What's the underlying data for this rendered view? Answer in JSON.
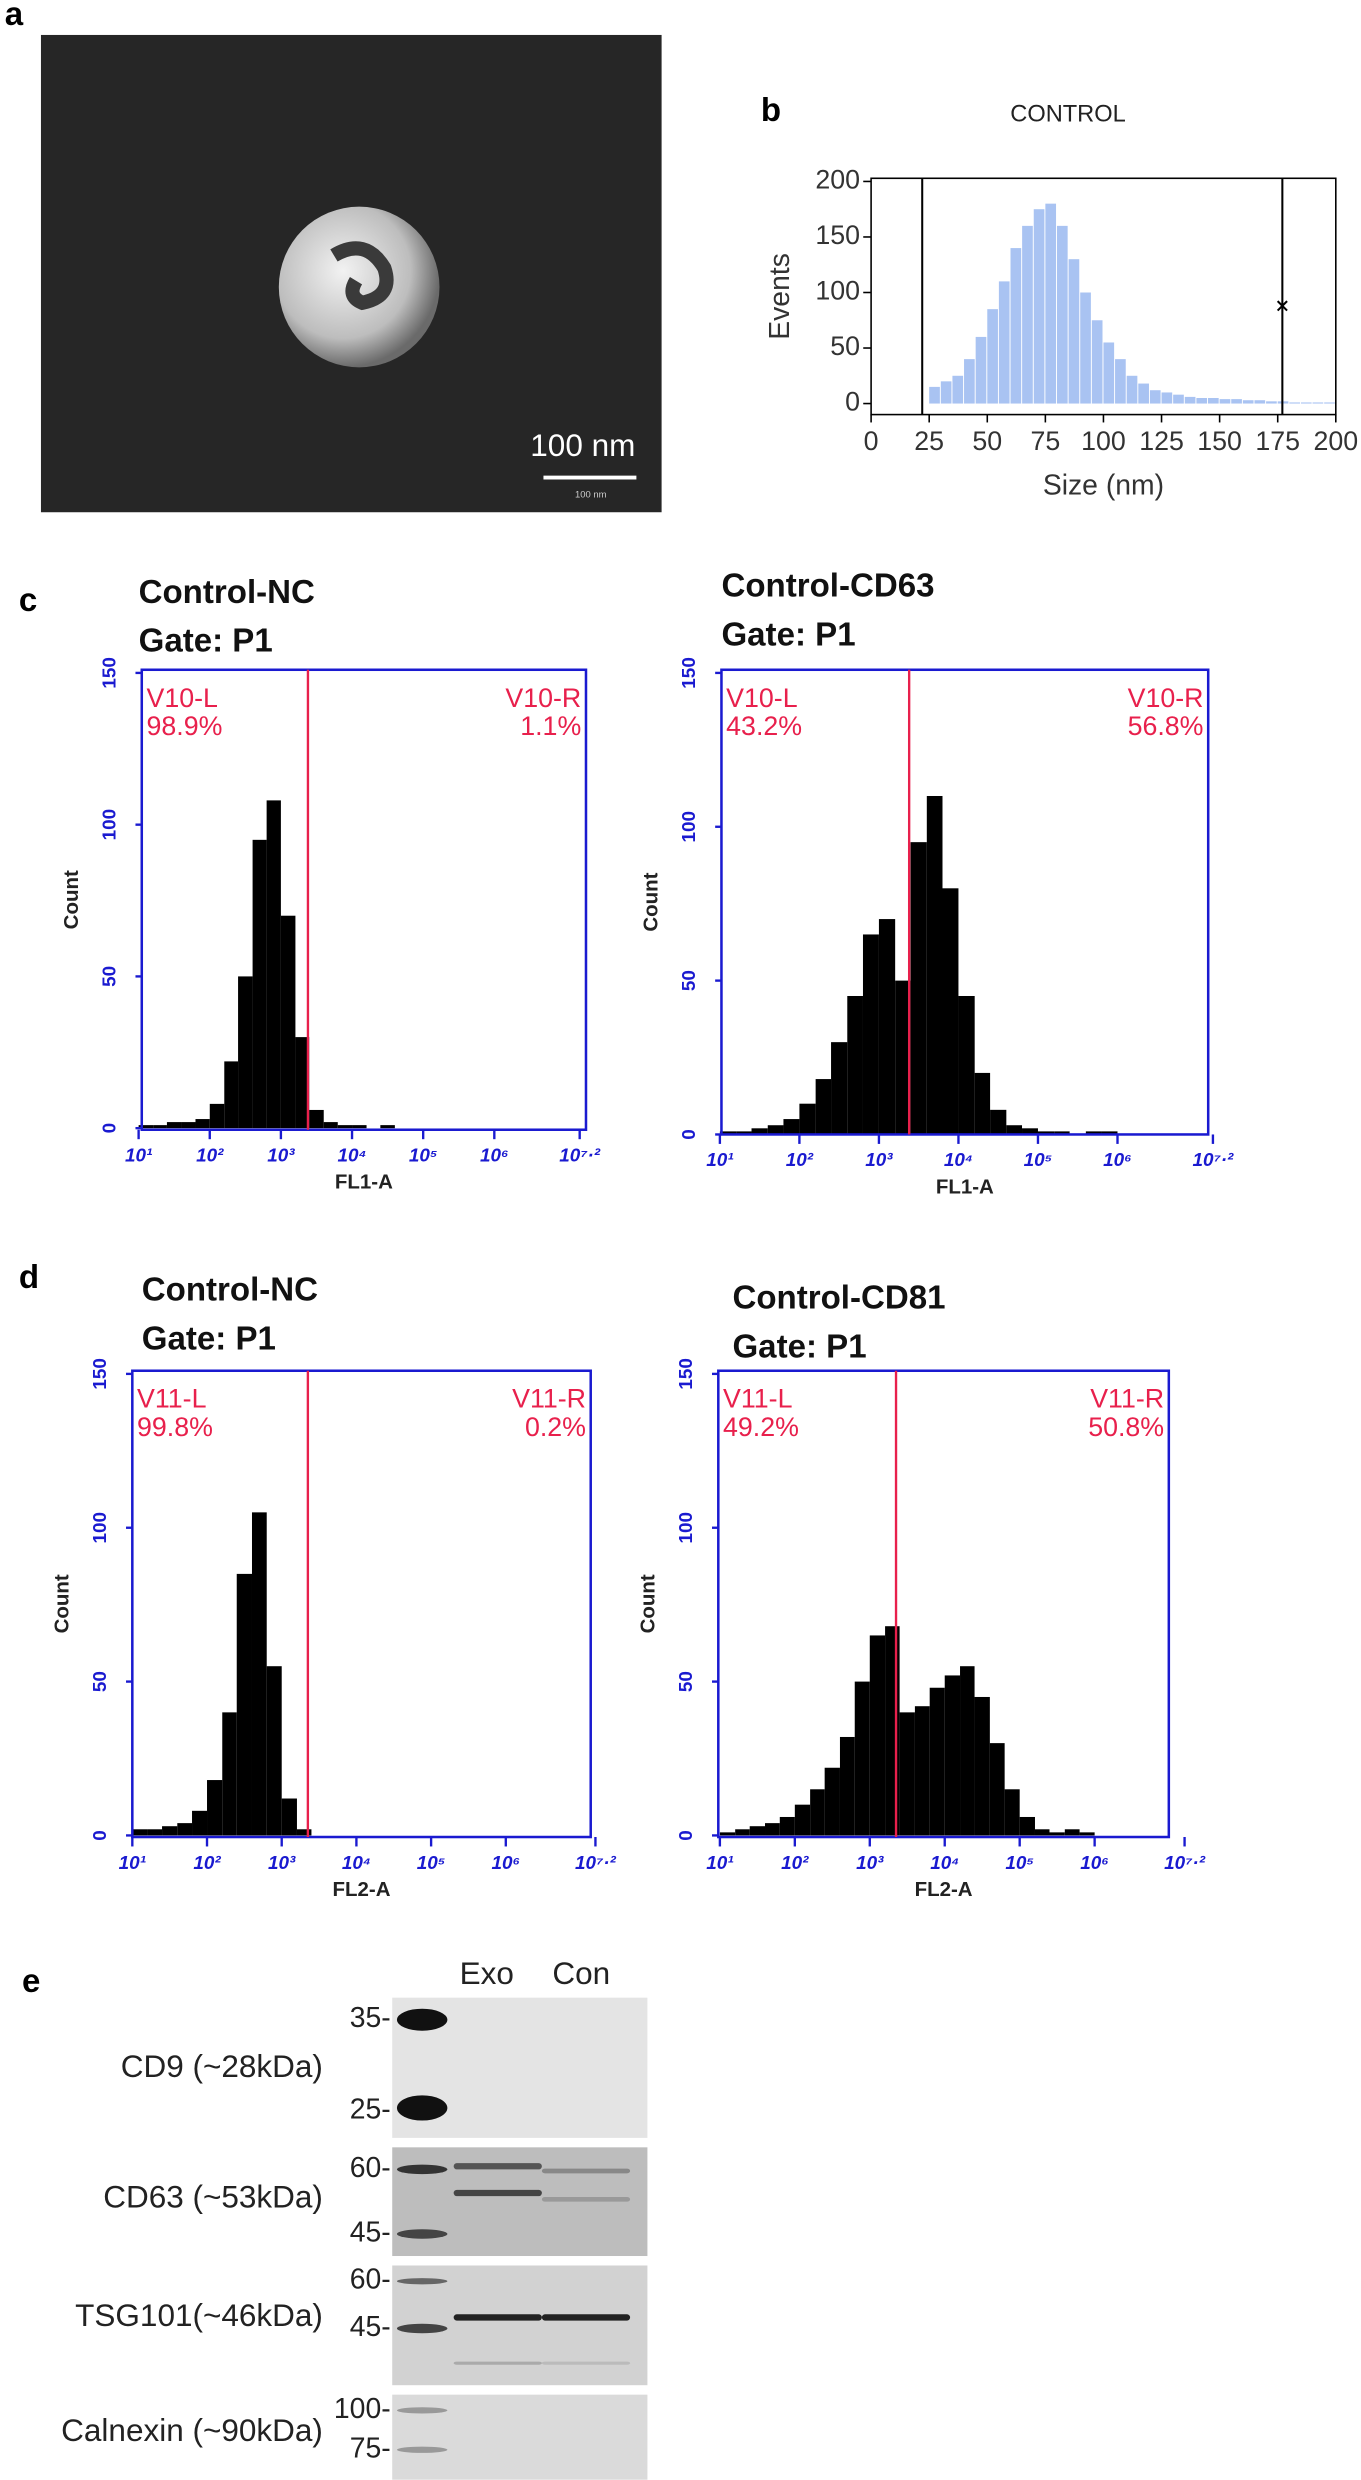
{
  "panel_labels": [
    "a",
    "b",
    "c",
    "d",
    "e"
  ],
  "tem_image": {
    "scale_bar": "100 nm",
    "scale_bar_small": "100 nm"
  },
  "chart_data": [
    {
      "type": "histogram",
      "title": "CONTROL",
      "xlabel": "Size (nm)",
      "ylabel": "Events",
      "xscale": "linear",
      "color": "#a9c3f2",
      "axis_color": "#000000",
      "bins": [
        25,
        30,
        35,
        40,
        45,
        50,
        55,
        60,
        65,
        70,
        75,
        80,
        85,
        90,
        95,
        100,
        105,
        110,
        115,
        120,
        125,
        130,
        135,
        140,
        145,
        150,
        155,
        160,
        165,
        170,
        175,
        180,
        185,
        190,
        195,
        200
      ],
      "counts": [
        15,
        20,
        25,
        40,
        60,
        85,
        110,
        140,
        160,
        175,
        180,
        160,
        130,
        100,
        75,
        55,
        40,
        25,
        18,
        12,
        10,
        8,
        6,
        5,
        5,
        4,
        4,
        3,
        3,
        2,
        2,
        1,
        1,
        1,
        1
      ],
      "xlim": [
        0,
        200
      ],
      "xticks": [
        0,
        25,
        50,
        75,
        100,
        125,
        150,
        175,
        200
      ],
      "ylim": [
        0,
        200
      ],
      "yticks": [
        0,
        50,
        100,
        150,
        200
      ],
      "gates": [
        22,
        177
      ],
      "marker_point": {
        "x": 177,
        "y": 88
      }
    },
    {
      "type": "histogram",
      "title": "Control-NC",
      "subtitle": "Gate: P1",
      "xlabel": "FL1-A",
      "ylabel": "Count",
      "xscale": "log",
      "color": "#000000",
      "axis_color": "#1a1ad0",
      "gate_color": "#e8204c",
      "gate": 2400,
      "gate_labels": {
        "left": "V10-L",
        "left_pct": "98.9%",
        "right": "V10-R",
        "right_pct": "1.1%"
      },
      "bins": [
        10,
        16,
        25,
        40,
        63,
        100,
        160,
        250,
        400,
        630,
        1000,
        1600,
        2500,
        4000,
        6300,
        10000,
        16000,
        25000,
        40000,
        63000,
        100000,
        160000,
        250000,
        400000,
        630000,
        1000000
      ],
      "counts": [
        1,
        1,
        2,
        2,
        3,
        8,
        22,
        50,
        95,
        108,
        70,
        30,
        6,
        2,
        1,
        1,
        0,
        1,
        0,
        0,
        0,
        0,
        0,
        0,
        0
      ],
      "xlim": [
        10,
        15848932
      ],
      "ylim": [
        0,
        150
      ],
      "yticks": [
        0,
        50,
        100,
        150
      ],
      "xticks": [
        {
          "value": 10,
          "label": "10¹"
        },
        {
          "value": 100,
          "label": "10²"
        },
        {
          "value": 1000,
          "label": "10³"
        },
        {
          "value": 10000,
          "label": "10⁴"
        },
        {
          "value": 100000,
          "label": "10⁵"
        },
        {
          "value": 1000000,
          "label": "10⁶"
        },
        {
          "value": 15848932,
          "label": "10⁷·²"
        }
      ]
    },
    {
      "type": "histogram",
      "title": "Control-CD63",
      "subtitle": "Gate: P1",
      "xlabel": "FL1-A",
      "ylabel": "Count",
      "xscale": "log",
      "color": "#000000",
      "axis_color": "#1a1ad0",
      "gate_color": "#e8204c",
      "gate": 2400,
      "gate_labels": {
        "left": "V10-L",
        "left_pct": "43.2%",
        "right": "V10-R",
        "right_pct": "56.8%"
      },
      "bins": [
        10,
        16,
        25,
        40,
        63,
        100,
        160,
        250,
        400,
        630,
        1000,
        1600,
        2500,
        4000,
        6300,
        10000,
        16000,
        25000,
        40000,
        63000,
        100000,
        160000,
        250000,
        400000,
        630000,
        1000000
      ],
      "counts": [
        1,
        1,
        2,
        3,
        5,
        10,
        18,
        30,
        45,
        65,
        70,
        50,
        95,
        110,
        80,
        45,
        20,
        8,
        3,
        2,
        1,
        1,
        0,
        1,
        1
      ],
      "xlim": [
        10,
        15848932
      ],
      "ylim": [
        0,
        150
      ],
      "yticks": [
        0,
        50,
        100,
        150
      ],
      "xticks": [
        {
          "value": 10,
          "label": "10¹"
        },
        {
          "value": 100,
          "label": "10²"
        },
        {
          "value": 1000,
          "label": "10³"
        },
        {
          "value": 10000,
          "label": "10⁴"
        },
        {
          "value": 100000,
          "label": "10⁵"
        },
        {
          "value": 1000000,
          "label": "10⁶"
        },
        {
          "value": 15848932,
          "label": "10⁷·²"
        }
      ]
    },
    {
      "type": "histogram",
      "title": "Control-NC",
      "subtitle": "Gate: P1",
      "xlabel": "FL2-A",
      "ylabel": "Count",
      "xscale": "log",
      "color": "#000000",
      "axis_color": "#1a1ad0",
      "gate_color": "#e8204c",
      "gate": 2240,
      "gate_labels": {
        "left": "V11-L",
        "left_pct": "99.8%",
        "right": "V11-R",
        "right_pct": "0.2%"
      },
      "bins": [
        10,
        16,
        25,
        40,
        63,
        100,
        160,
        250,
        400,
        630,
        1000,
        1600,
        2500,
        4000,
        6300,
        10000,
        16000,
        25000,
        40000,
        63000,
        100000,
        160000,
        250000,
        400000,
        630000,
        1000000
      ],
      "counts": [
        2,
        2,
        3,
        4,
        8,
        18,
        40,
        85,
        105,
        55,
        12,
        2,
        0,
        0,
        0,
        0,
        0,
        0,
        0,
        0,
        0,
        0,
        0,
        0,
        0
      ],
      "xlim": [
        10,
        15848932
      ],
      "ylim": [
        0,
        150
      ],
      "yticks": [
        0,
        50,
        100,
        150
      ],
      "xticks": [
        {
          "value": 10,
          "label": "10¹"
        },
        {
          "value": 100,
          "label": "10²"
        },
        {
          "value": 1000,
          "label": "10³"
        },
        {
          "value": 10000,
          "label": "10⁴"
        },
        {
          "value": 100000,
          "label": "10⁵"
        },
        {
          "value": 1000000,
          "label": "10⁶"
        },
        {
          "value": 15848932,
          "label": "10⁷·²"
        }
      ]
    },
    {
      "type": "histogram",
      "title": "Control-CD81",
      "subtitle": "Gate: P1",
      "xlabel": "FL2-A",
      "ylabel": "Count",
      "xscale": "log",
      "color": "#000000",
      "axis_color": "#1a1ad0",
      "gate_color": "#e8204c",
      "gate": 2240,
      "gate_labels": {
        "left": "V11-L",
        "left_pct": "49.2%",
        "right": "V11-R",
        "right_pct": "50.8%"
      },
      "bins": [
        10,
        16,
        25,
        40,
        63,
        100,
        160,
        250,
        400,
        630,
        1000,
        1600,
        2500,
        4000,
        6300,
        10000,
        16000,
        25000,
        40000,
        63000,
        100000,
        160000,
        250000,
        400000,
        630000,
        1000000
      ],
      "counts": [
        1,
        2,
        3,
        4,
        6,
        10,
        15,
        22,
        32,
        50,
        65,
        68,
        40,
        42,
        48,
        52,
        55,
        45,
        30,
        15,
        6,
        2,
        1,
        2,
        1
      ],
      "xlim": [
        10,
        15848932
      ],
      "ylim": [
        0,
        150
      ],
      "yticks": [
        0,
        50,
        100,
        150
      ],
      "xticks": [
        {
          "value": 10,
          "label": "10¹"
        },
        {
          "value": 100,
          "label": "10²"
        },
        {
          "value": 1000,
          "label": "10³"
        },
        {
          "value": 10000,
          "label": "10⁴"
        },
        {
          "value": 100000,
          "label": "10⁵"
        },
        {
          "value": 1000000,
          "label": "10⁶"
        },
        {
          "value": 15848932,
          "label": "10⁷·²"
        }
      ]
    }
  ],
  "western_blot": {
    "lanes": [
      "Exo",
      "Con"
    ],
    "rows": [
      {
        "label": "CD9 (~28kDa)",
        "markers": [
          "35-",
          "25-"
        ]
      },
      {
        "label": "CD63 (~53kDa)",
        "markers": [
          "60-",
          "45-"
        ]
      },
      {
        "label": "TSG101(~46kDa)",
        "markers": [
          "60-",
          "45-"
        ]
      },
      {
        "label": "Calnexin (~90kDa)",
        "markers": [
          "100-",
          "75-"
        ]
      }
    ]
  }
}
